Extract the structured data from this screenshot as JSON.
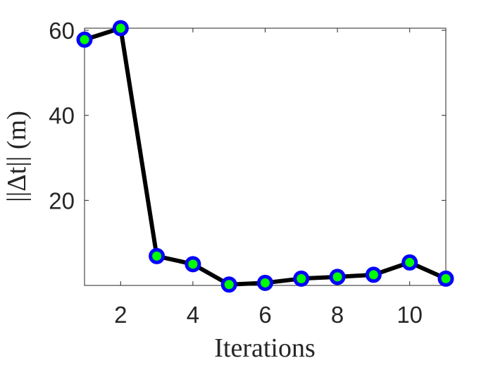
{
  "chart_data": {
    "type": "line",
    "xlabel": "Iterations",
    "ylabel": "||Δt|| (m)",
    "xlim": [
      1,
      11
    ],
    "ylim": [
      0,
      60.5
    ],
    "xticks": [
      2,
      4,
      6,
      8,
      10
    ],
    "yticks": [
      20,
      40,
      60
    ],
    "grid": false,
    "series": [
      {
        "x": [
          1,
          2,
          3,
          4,
          5,
          6,
          7,
          8,
          9,
          10,
          11
        ],
        "y": [
          57.8,
          60.5,
          6.9,
          5.0,
          0.2,
          0.6,
          1.6,
          2.0,
          2.5,
          5.4,
          1.6
        ]
      }
    ],
    "colors": {
      "line": "#000000",
      "marker_edge": "#0000ff",
      "marker_fill": "#00ff00",
      "axis": "#262626"
    }
  }
}
